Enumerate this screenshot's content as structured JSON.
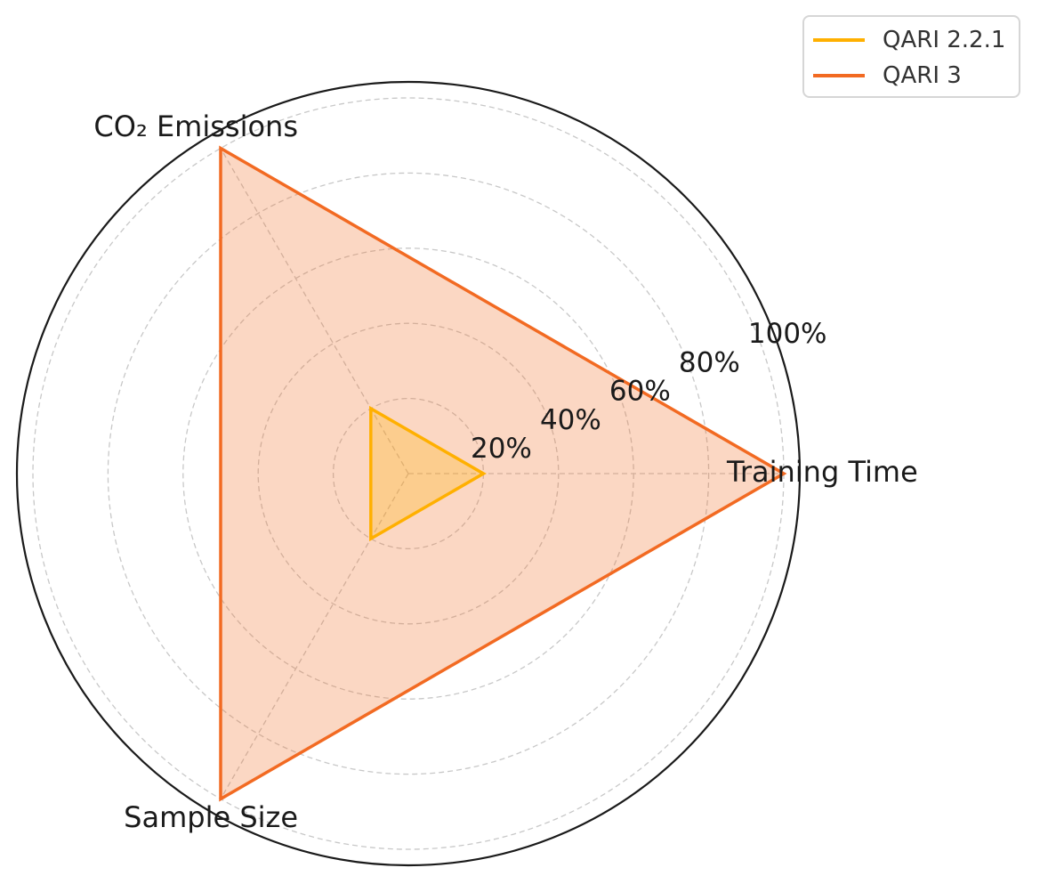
{
  "chart_data": {
    "type": "radar",
    "categories": [
      "Training Time",
      "CO₂ Emissions",
      "Sample Size"
    ],
    "rlim": [
      0,
      100
    ],
    "r_ticks": [
      20,
      40,
      60,
      80,
      100
    ],
    "r_tick_labels": [
      "20%",
      "40%",
      "60%",
      "80%",
      "100%"
    ],
    "grid": true,
    "legend_position": "top-right",
    "series": [
      {
        "name": "QARI 2.2.1",
        "values": [
          20,
          20,
          20
        ],
        "color": "#FFB000",
        "fill_color": "#FFB000"
      },
      {
        "name": "QARI 3",
        "values": [
          100,
          100,
          100
        ],
        "color": "#F26A22",
        "fill_color": "#F26A22"
      }
    ]
  }
}
